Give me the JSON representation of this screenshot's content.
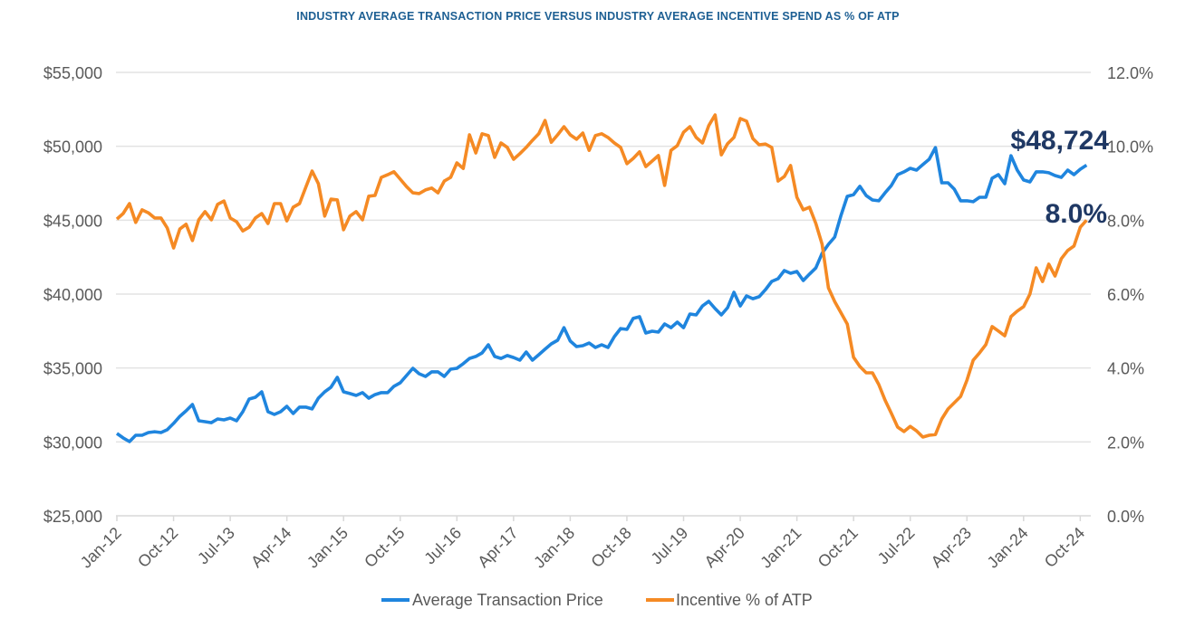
{
  "chart_data": {
    "type": "line",
    "title": "INDUSTRY AVERAGE TRANSACTION PRICE VERSUS INDUSTRY AVERAGE INCENTIVE SPEND AS % OF ATP",
    "x_start": "Jan-12",
    "x_interval": "monthly",
    "x_tick_every_months": 9,
    "x_tick_labels": [
      "Jan-12",
      "Oct-12",
      "Jul-13",
      "Apr-14",
      "Jan-15",
      "Oct-15",
      "Jul-16",
      "Apr-17",
      "Jan-18",
      "Oct-18",
      "Jul-19",
      "Apr-20",
      "Jan-21",
      "Oct-21",
      "Jul-22",
      "Apr-23",
      "Jan-24",
      "Oct-24"
    ],
    "y_left": {
      "min": 25000,
      "max": 55000,
      "step": 5000,
      "tick_labels": [
        "$25,000",
        "$30,000",
        "$35,000",
        "$40,000",
        "$45,000",
        "$50,000",
        "$55,000"
      ]
    },
    "y_right": {
      "min": 0,
      "max": 12,
      "step": 2,
      "tick_labels": [
        "0.0%",
        "2.0%",
        "4.0%",
        "6.0%",
        "8.0%",
        "10.0%",
        "12.0%"
      ]
    },
    "grid": true,
    "legend_position": "bottom",
    "series": [
      {
        "name": "Average Transaction Price",
        "axis": "left",
        "color": "#1f85de",
        "values": [
          30570,
          30270,
          30020,
          30450,
          30450,
          30630,
          30690,
          30630,
          30820,
          31250,
          31730,
          32100,
          32530,
          31430,
          31370,
          31300,
          31550,
          31490,
          31610,
          31430,
          32040,
          32900,
          33020,
          33390,
          32040,
          31860,
          32040,
          32410,
          31920,
          32350,
          32350,
          32230,
          32960,
          33390,
          33700,
          34370,
          33390,
          33270,
          33140,
          33330,
          32960,
          33200,
          33330,
          33330,
          33760,
          34000,
          34490,
          34980,
          34610,
          34430,
          34740,
          34740,
          34430,
          34920,
          34980,
          35290,
          35650,
          35780,
          36020,
          36570,
          35780,
          35650,
          35840,
          35710,
          35530,
          36080,
          35530,
          35900,
          36270,
          36630,
          36880,
          37730,
          36820,
          36450,
          36510,
          36690,
          36390,
          36570,
          36390,
          37120,
          37670,
          37610,
          38350,
          38470,
          37370,
          37490,
          37430,
          37980,
          37730,
          38100,
          37730,
          38650,
          38590,
          39200,
          39510,
          39020,
          38590,
          39080,
          40120,
          39200,
          39880,
          39690,
          39820,
          40300,
          40860,
          41040,
          41590,
          41410,
          41530,
          40920,
          41350,
          41770,
          42760,
          43370,
          43860,
          45330,
          46610,
          46730,
          47290,
          46670,
          46370,
          46310,
          46850,
          47350,
          48080,
          48270,
          48510,
          48390,
          48760,
          49120,
          49910,
          47530,
          47530,
          47100,
          46310,
          46310,
          46250,
          46550,
          46550,
          47840,
          48080,
          47470,
          49360,
          48390,
          47720,
          47590,
          48270,
          48270,
          48210,
          48020,
          47900,
          48390,
          48080,
          48450,
          48724
        ]
      },
      {
        "name": "Incentive % of ATP",
        "axis": "right",
        "color": "#f58a24",
        "values": [
          8.03,
          8.18,
          8.45,
          7.94,
          8.28,
          8.2,
          8.06,
          8.06,
          7.79,
          7.25,
          7.76,
          7.89,
          7.45,
          8.01,
          8.23,
          8.01,
          8.43,
          8.52,
          8.06,
          7.96,
          7.71,
          7.81,
          8.06,
          8.18,
          7.91,
          8.45,
          8.45,
          7.98,
          8.35,
          8.45,
          8.89,
          9.33,
          8.99,
          8.11,
          8.57,
          8.55,
          7.74,
          8.11,
          8.23,
          8.01,
          8.65,
          8.67,
          9.16,
          9.23,
          9.31,
          9.11,
          8.91,
          8.74,
          8.72,
          8.82,
          8.87,
          8.74,
          9.06,
          9.16,
          9.55,
          9.4,
          10.31,
          9.82,
          10.34,
          10.29,
          9.7,
          10.09,
          9.97,
          9.65,
          9.8,
          9.97,
          10.16,
          10.34,
          10.7,
          10.11,
          10.31,
          10.53,
          10.31,
          10.19,
          10.36,
          9.89,
          10.29,
          10.34,
          10.24,
          10.09,
          9.97,
          9.53,
          9.67,
          9.85,
          9.45,
          9.6,
          9.75,
          8.94,
          9.89,
          10.02,
          10.38,
          10.53,
          10.24,
          10.09,
          10.56,
          10.85,
          9.77,
          10.07,
          10.24,
          10.75,
          10.68,
          10.21,
          10.04,
          10.06,
          9.97,
          9.06,
          9.18,
          9.48,
          8.62,
          8.28,
          8.35,
          7.91,
          7.35,
          6.17,
          5.8,
          5.49,
          5.19,
          4.29,
          4.04,
          3.87,
          3.87,
          3.55,
          3.13,
          2.77,
          2.4,
          2.28,
          2.42,
          2.3,
          2.13,
          2.18,
          2.2,
          2.62,
          2.89,
          3.06,
          3.23,
          3.67,
          4.21,
          4.41,
          4.63,
          5.12,
          5.0,
          4.87,
          5.39,
          5.54,
          5.66,
          6.0,
          6.71,
          6.34,
          6.81,
          6.49,
          6.96,
          7.18,
          7.3,
          7.81,
          8.0
        ]
      }
    ],
    "annotations": [
      {
        "text": "$48,724",
        "series": "Average Transaction Price",
        "at": "last"
      },
      {
        "text": "8.0%",
        "series": "Incentive % of ATP",
        "at": "last"
      }
    ]
  }
}
